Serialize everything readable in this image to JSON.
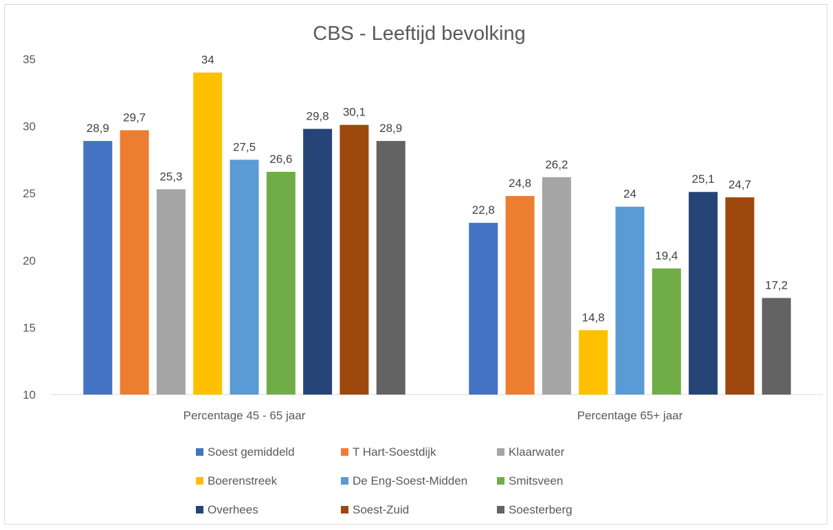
{
  "chart_data": {
    "type": "bar",
    "title": "CBS - Leeftijd bevolking",
    "categories": [
      "Percentage 45 - 65 jaar",
      "Percentage 65+ jaar"
    ],
    "ylim": [
      10,
      35
    ],
    "yticks": [
      10,
      15,
      20,
      25,
      30,
      35
    ],
    "grid": false,
    "legend_position": "bottom",
    "series": [
      {
        "name": "Soest gemiddeld",
        "color": "#4472C4",
        "values": [
          28.9,
          22.8
        ],
        "labels": [
          "28,9",
          "22,8"
        ]
      },
      {
        "name": "T Hart-Soestdijk",
        "color": "#ED7D31",
        "values": [
          29.7,
          24.8
        ],
        "labels": [
          "29,7",
          "24,8"
        ]
      },
      {
        "name": "Klaarwater",
        "color": "#A5A5A5",
        "values": [
          25.3,
          26.2
        ],
        "labels": [
          "25,3",
          "26,2"
        ]
      },
      {
        "name": "Boerenstreek",
        "color": "#FFC000",
        "values": [
          34,
          14.8
        ],
        "labels": [
          "34",
          "14,8"
        ]
      },
      {
        "name": "De Eng-Soest-Midden",
        "color": "#5B9BD5",
        "values": [
          27.5,
          24
        ],
        "labels": [
          "27,5",
          "24"
        ]
      },
      {
        "name": "Smitsveen",
        "color": "#70AD47",
        "values": [
          26.6,
          19.4
        ],
        "labels": [
          "26,6",
          "19,4"
        ]
      },
      {
        "name": "Overhees",
        "color": "#264478",
        "values": [
          29.8,
          25.1
        ],
        "labels": [
          "29,8",
          "25,1"
        ]
      },
      {
        "name": "Soest-Zuid",
        "color": "#9E480E",
        "values": [
          30.1,
          24.7
        ],
        "labels": [
          "30,1",
          "24,7"
        ]
      },
      {
        "name": "Soesterberg",
        "color": "#636363",
        "values": [
          28.9,
          17.2
        ],
        "labels": [
          "28,9",
          "17,2"
        ]
      }
    ]
  }
}
